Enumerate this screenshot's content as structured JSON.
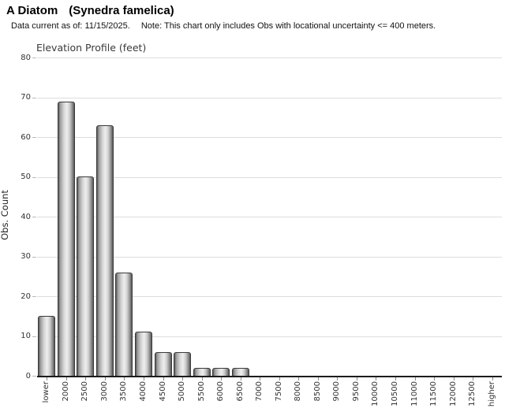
{
  "header": {
    "title": "A Diatom",
    "title_scientific": "(Synedra famelica)",
    "subtitle_left": "Data current as of: 11/15/2025.",
    "subtitle_right": "Note: This chart only includes Obs with locational uncertainty <= 400 meters."
  },
  "chart_data": {
    "type": "bar",
    "title": "Elevation Profile (feet)",
    "xlabel": "",
    "ylabel": "Obs. Count",
    "ylim": [
      0,
      80
    ],
    "yticks": [
      0,
      10,
      20,
      30,
      40,
      50,
      60,
      70,
      80
    ],
    "grid": true,
    "legend": "none",
    "categories": [
      "lower",
      "2000",
      "2500",
      "3000",
      "3500",
      "4000",
      "4500",
      "5000",
      "5500",
      "6000",
      "6500",
      "7000",
      "7500",
      "8000",
      "8500",
      "9000",
      "9500",
      "10000",
      "10500",
      "11000",
      "11500",
      "12000",
      "12500",
      "higher"
    ],
    "values": [
      15,
      69,
      50,
      63,
      26,
      11,
      6,
      6,
      2,
      2,
      2,
      0,
      0,
      0,
      0,
      0,
      0,
      0,
      0,
      0,
      0,
      0,
      0,
      0
    ],
    "colors": {
      "gridline": "#dddddd",
      "axis": "#1c1c1c",
      "tick": "#8a8a8a",
      "text": "#333333",
      "bar_border": "#3a3a3a",
      "bar_dark": "#585858",
      "bar_mid": "#9e9e9e",
      "bar_light": "#eeeeee",
      "bar_shade": "#8f8f8f"
    }
  }
}
